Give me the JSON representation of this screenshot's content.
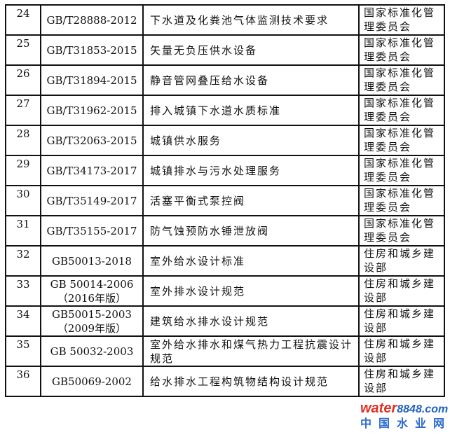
{
  "rows": [
    {
      "num": "24",
      "code": "GB/T28888-2012",
      "name": "下水道及化粪池气体监测技术要求",
      "org": "国家标准化管理委员会"
    },
    {
      "num": "25",
      "code": "GB/T31853-2015",
      "name": "矢量无负压供水设备",
      "org": "国家标准化管理委员会"
    },
    {
      "num": "26",
      "code": "GB/T31894-2015",
      "name": "静音管网叠压给水设备",
      "org": "国家标准化管理委员会"
    },
    {
      "num": "27",
      "code": "GB/T31962-2015",
      "name": "排入城镇下水道水质标准",
      "org": "国家标准化管理委员会"
    },
    {
      "num": "28",
      "code": "GB/T32063-2015",
      "name": "城镇供水服务",
      "org": "国家标准化管理委员会"
    },
    {
      "num": "29",
      "code": "GB/T34173-2017",
      "name": "城镇排水与污水处理服务",
      "org": "国家标准化管理委员会"
    },
    {
      "num": "30",
      "code": "GB/T35149-2017",
      "name": "活塞平衡式泵控阀",
      "org": "国家标准化管理委员会"
    },
    {
      "num": "31",
      "code": "GB/T35155-2017",
      "name": "防气蚀预防水锤泄放阀",
      "org": "国家标准化管理委员会"
    },
    {
      "num": "32",
      "code": "GB50013-2018",
      "name": "室外给水设计标准",
      "org": "住房和城乡建设部"
    },
    {
      "num": "33",
      "code": "GB 50014-2006（2016年版）",
      "name": "室外排水设计规范",
      "org": "住房和城乡建设部"
    },
    {
      "num": "34",
      "code": "GB50015-2003（2009年版）",
      "name": "建筑给水排水设计规范",
      "org": "住房和城乡建设部"
    },
    {
      "num": "35",
      "code": "GB 50032-2003",
      "name": "室外给水排水和煤气热力工程抗震设计规范",
      "org": "住房和城乡建设部"
    },
    {
      "num": "36",
      "code": "GB50069-2002",
      "name": "给水排水工程构筑物结构设计规范",
      "org": "住房和城乡建设部"
    }
  ],
  "watermark": {
    "brand": "water",
    "brand_num": "8848.com",
    "cn": "中国水业网"
  }
}
